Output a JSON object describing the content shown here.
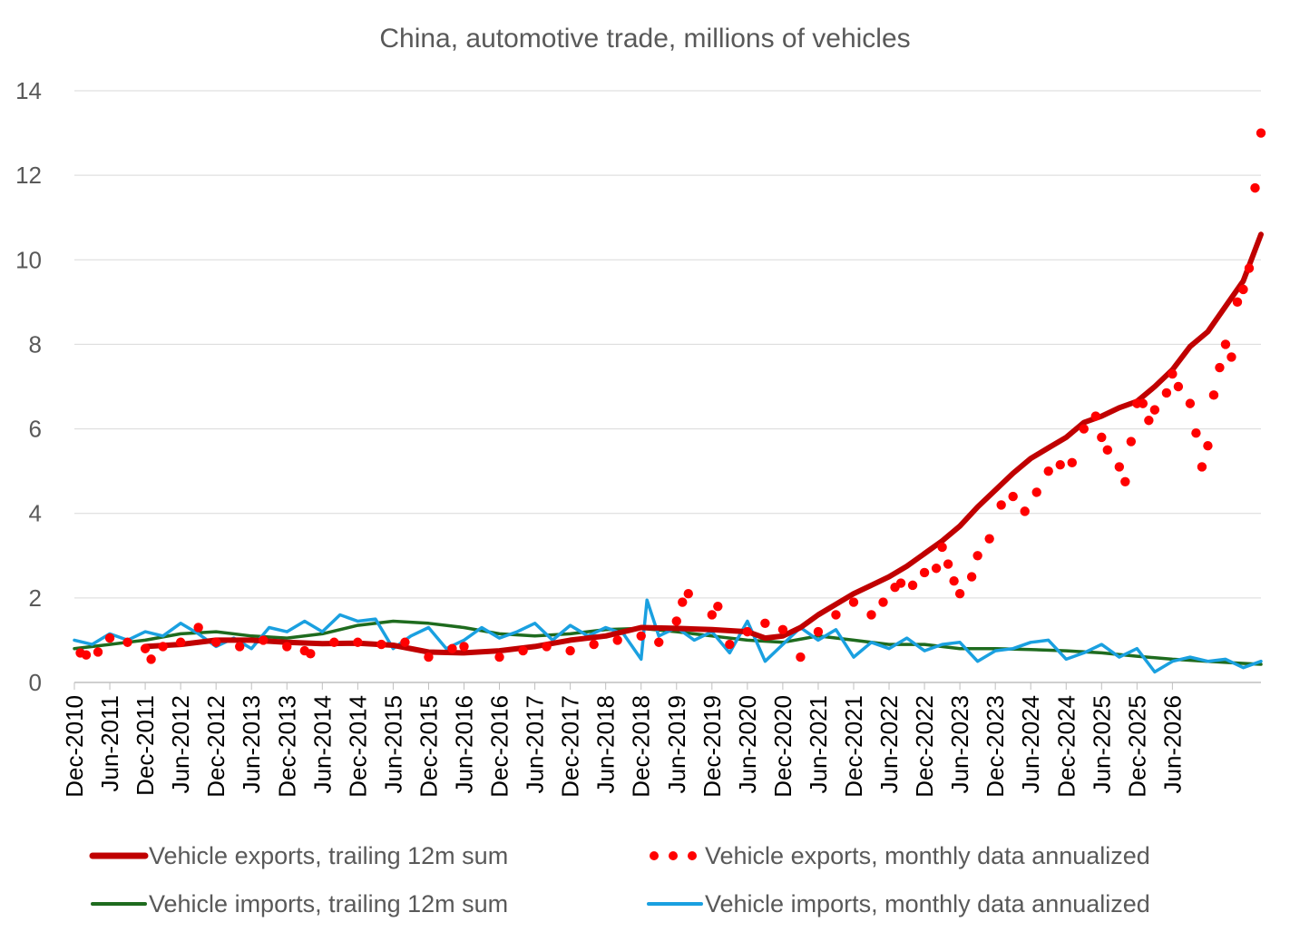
{
  "chart_data": {
    "type": "line",
    "title": "China, automotive trade, millions of vehicles",
    "xlabel": "",
    "ylabel": "",
    "ylim": [
      0,
      14
    ],
    "yticks": [
      "0",
      "2",
      "4",
      "6",
      "8",
      "10",
      "12",
      "14"
    ],
    "xticks": [
      "Dec-2010",
      "Jun-2011",
      "Dec-2011",
      "Jun-2012",
      "Dec-2012",
      "Jun-2013",
      "Dec-2013",
      "Jun-2014",
      "Dec-2014",
      "Jun-2015",
      "Dec-2015",
      "Jun-2016",
      "Dec-2016",
      "Jun-2017",
      "Dec-2017",
      "Jun-2018",
      "Dec-2018",
      "Jun-2019",
      "Dec-2019",
      "Jun-2020",
      "Dec-2020",
      "Jun-2021",
      "Dec-2021",
      "Jun-2022",
      "Dec-2022",
      "Jun-2023",
      "Dec-2023",
      "Jun-2024",
      "Dec-2024",
      "Jun-2025",
      "Dec-2025",
      "Jun-2026"
    ],
    "grid": true,
    "legend_position": "bottom",
    "x_anchor_points": [
      "2010-12",
      "2026-06"
    ],
    "series": [
      {
        "name": "Vehicle exports, trailing 12m sum",
        "style": "line-thick",
        "color": "#c00000",
        "points": [
          [
            "2011-12",
            0.85
          ],
          [
            "2012-06",
            0.9
          ],
          [
            "2012-12",
            1.0
          ],
          [
            "2013-06",
            1.0
          ],
          [
            "2013-12",
            0.95
          ],
          [
            "2014-06",
            0.92
          ],
          [
            "2014-12",
            0.93
          ],
          [
            "2015-06",
            0.88
          ],
          [
            "2015-12",
            0.72
          ],
          [
            "2016-06",
            0.7
          ],
          [
            "2016-12",
            0.75
          ],
          [
            "2017-06",
            0.85
          ],
          [
            "2017-12",
            1.0
          ],
          [
            "2018-06",
            1.1
          ],
          [
            "2018-12",
            1.3
          ],
          [
            "2019-06",
            1.28
          ],
          [
            "2019-12",
            1.25
          ],
          [
            "2020-06",
            1.2
          ],
          [
            "2020-09",
            1.05
          ],
          [
            "2020-12",
            1.1
          ],
          [
            "2021-03",
            1.3
          ],
          [
            "2021-06",
            1.6
          ],
          [
            "2021-09",
            1.85
          ],
          [
            "2021-12",
            2.1
          ],
          [
            "2022-03",
            2.3
          ],
          [
            "2022-06",
            2.5
          ],
          [
            "2022-09",
            2.75
          ],
          [
            "2022-12",
            3.05
          ],
          [
            "2023-03",
            3.35
          ],
          [
            "2023-06",
            3.7
          ],
          [
            "2023-09",
            4.15
          ],
          [
            "2023-12",
            4.55
          ],
          [
            "2024-03",
            4.95
          ],
          [
            "2024-06",
            5.3
          ],
          [
            "2024-09",
            5.55
          ],
          [
            "2024-12",
            5.8
          ],
          [
            "2025-03",
            6.15
          ],
          [
            "2025-06",
            6.3
          ],
          [
            "2025-09",
            6.5
          ],
          [
            "2025-12",
            6.65
          ],
          [
            "2026-03",
            7.0
          ],
          [
            "2026-06",
            7.4
          ],
          [
            "2026-09",
            7.95
          ],
          [
            "2026-12",
            8.3
          ],
          [
            "2027-03",
            8.9
          ],
          [
            "2027-06",
            9.5
          ],
          [
            "2027-09",
            10.6
          ]
        ]
      },
      {
        "name": "Vehicle exports, monthly data annualized",
        "style": "dots",
        "color": "#ff0000",
        "points": [
          [
            "2011-01",
            0.7
          ],
          [
            "2011-02",
            0.65
          ],
          [
            "2011-04",
            0.72
          ],
          [
            "2011-06",
            1.05
          ],
          [
            "2011-09",
            0.95
          ],
          [
            "2011-12",
            0.8
          ],
          [
            "2012-01",
            0.55
          ],
          [
            "2012-03",
            0.85
          ],
          [
            "2012-06",
            0.95
          ],
          [
            "2012-09",
            1.3
          ],
          [
            "2012-12",
            0.95
          ],
          [
            "2013-04",
            0.85
          ],
          [
            "2013-08",
            1.0
          ],
          [
            "2013-12",
            0.85
          ],
          [
            "2014-03",
            0.75
          ],
          [
            "2014-04",
            0.68
          ],
          [
            "2014-08",
            0.95
          ],
          [
            "2014-12",
            0.95
          ],
          [
            "2015-04",
            0.9
          ],
          [
            "2015-08",
            0.95
          ],
          [
            "2015-12",
            0.6
          ],
          [
            "2016-04",
            0.8
          ],
          [
            "2016-06",
            0.85
          ],
          [
            "2016-12",
            0.6
          ],
          [
            "2017-04",
            0.75
          ],
          [
            "2017-08",
            0.85
          ],
          [
            "2017-12",
            0.75
          ],
          [
            "2018-04",
            0.9
          ],
          [
            "2018-08",
            1.0
          ],
          [
            "2018-12",
            1.1
          ],
          [
            "2019-03",
            0.95
          ],
          [
            "2019-06",
            1.45
          ],
          [
            "2019-07",
            1.9
          ],
          [
            "2019-08",
            2.1
          ],
          [
            "2019-12",
            1.6
          ],
          [
            "2020-01",
            1.8
          ],
          [
            "2020-03",
            0.9
          ],
          [
            "2020-06",
            1.2
          ],
          [
            "2020-09",
            1.4
          ],
          [
            "2020-12",
            1.25
          ],
          [
            "2021-03",
            0.6
          ],
          [
            "2021-06",
            1.2
          ],
          [
            "2021-09",
            1.6
          ],
          [
            "2021-12",
            1.9
          ],
          [
            "2022-03",
            1.6
          ],
          [
            "2022-05",
            1.9
          ],
          [
            "2022-07",
            2.25
          ],
          [
            "2022-08",
            2.35
          ],
          [
            "2022-10",
            2.3
          ],
          [
            "2022-12",
            2.6
          ],
          [
            "2023-02",
            2.7
          ],
          [
            "2023-03",
            3.2
          ],
          [
            "2023-04",
            2.8
          ],
          [
            "2023-05",
            2.4
          ],
          [
            "2023-06",
            2.1
          ],
          [
            "2023-08",
            2.5
          ],
          [
            "2023-09",
            3.0
          ],
          [
            "2023-11",
            3.4
          ],
          [
            "2024-01",
            4.2
          ],
          [
            "2024-03",
            4.4
          ],
          [
            "2024-05",
            4.05
          ],
          [
            "2024-07",
            4.5
          ],
          [
            "2024-09",
            5.0
          ],
          [
            "2024-11",
            5.15
          ],
          [
            "2025-01",
            5.2
          ],
          [
            "2025-03",
            6.0
          ],
          [
            "2025-05",
            6.3
          ],
          [
            "2025-06",
            5.8
          ],
          [
            "2025-07",
            5.5
          ],
          [
            "2025-09",
            5.1
          ],
          [
            "2025-10",
            4.75
          ],
          [
            "2025-11",
            5.7
          ],
          [
            "2025-12",
            6.6
          ],
          [
            "2026-01",
            6.6
          ],
          [
            "2026-02",
            6.2
          ],
          [
            "2026-03",
            6.45
          ],
          [
            "2026-05",
            6.85
          ],
          [
            "2026-06",
            7.3
          ],
          [
            "2026-07",
            7.0
          ],
          [
            "2026-09",
            6.6
          ],
          [
            "2026-10",
            5.9
          ],
          [
            "2026-11",
            5.1
          ],
          [
            "2026-12",
            5.6
          ],
          [
            "2027-01",
            6.8
          ],
          [
            "2027-02",
            7.45
          ],
          [
            "2027-03",
            8.0
          ],
          [
            "2027-04",
            7.7
          ],
          [
            "2027-05",
            9.0
          ],
          [
            "2027-06",
            9.3
          ],
          [
            "2027-07",
            9.8
          ],
          [
            "2027-08",
            11.7
          ],
          [
            "2027-09",
            13.0
          ]
        ]
      },
      {
        "name": "Vehicle imports, trailing 12m sum",
        "style": "line",
        "color": "#1e6b1e",
        "points": [
          [
            "2010-12",
            0.8
          ],
          [
            "2011-06",
            0.9
          ],
          [
            "2011-12",
            1.0
          ],
          [
            "2012-06",
            1.15
          ],
          [
            "2012-12",
            1.2
          ],
          [
            "2013-06",
            1.1
          ],
          [
            "2013-12",
            1.05
          ],
          [
            "2014-06",
            1.15
          ],
          [
            "2014-12",
            1.35
          ],
          [
            "2015-06",
            1.45
          ],
          [
            "2015-12",
            1.4
          ],
          [
            "2016-06",
            1.3
          ],
          [
            "2016-12",
            1.15
          ],
          [
            "2017-06",
            1.1
          ],
          [
            "2017-12",
            1.15
          ],
          [
            "2018-06",
            1.25
          ],
          [
            "2018-12",
            1.28
          ],
          [
            "2019-06",
            1.2
          ],
          [
            "2019-12",
            1.1
          ],
          [
            "2020-06",
            1.0
          ],
          [
            "2020-12",
            0.95
          ],
          [
            "2021-06",
            1.1
          ],
          [
            "2021-12",
            1.0
          ],
          [
            "2022-06",
            0.9
          ],
          [
            "2022-12",
            0.9
          ],
          [
            "2023-06",
            0.8
          ],
          [
            "2023-12",
            0.8
          ],
          [
            "2024-06",
            0.78
          ],
          [
            "2024-12",
            0.75
          ],
          [
            "2025-06",
            0.7
          ],
          [
            "2025-12",
            0.62
          ],
          [
            "2026-06",
            0.55
          ],
          [
            "2026-12",
            0.5
          ],
          [
            "2027-06",
            0.45
          ],
          [
            "2027-09",
            0.43
          ]
        ]
      },
      {
        "name": "Vehicle imports, monthly data annualized",
        "style": "line",
        "color": "#1aa0e0",
        "points": [
          [
            "2010-12",
            1.0
          ],
          [
            "2011-03",
            0.9
          ],
          [
            "2011-06",
            1.15
          ],
          [
            "2011-09",
            1.0
          ],
          [
            "2011-12",
            1.2
          ],
          [
            "2012-03",
            1.1
          ],
          [
            "2012-06",
            1.4
          ],
          [
            "2012-09",
            1.15
          ],
          [
            "2012-12",
            0.85
          ],
          [
            "2013-03",
            1.05
          ],
          [
            "2013-06",
            0.8
          ],
          [
            "2013-09",
            1.3
          ],
          [
            "2013-12",
            1.2
          ],
          [
            "2014-03",
            1.45
          ],
          [
            "2014-06",
            1.2
          ],
          [
            "2014-09",
            1.6
          ],
          [
            "2014-12",
            1.45
          ],
          [
            "2015-03",
            1.5
          ],
          [
            "2015-06",
            0.8
          ],
          [
            "2015-09",
            1.1
          ],
          [
            "2015-12",
            1.3
          ],
          [
            "2016-03",
            0.8
          ],
          [
            "2016-06",
            1.0
          ],
          [
            "2016-09",
            1.3
          ],
          [
            "2016-12",
            1.05
          ],
          [
            "2017-03",
            1.2
          ],
          [
            "2017-06",
            1.4
          ],
          [
            "2017-09",
            1.0
          ],
          [
            "2017-12",
            1.35
          ],
          [
            "2018-03",
            1.1
          ],
          [
            "2018-06",
            1.3
          ],
          [
            "2018-09",
            1.15
          ],
          [
            "2018-12",
            0.55
          ],
          [
            "2019-01",
            1.95
          ],
          [
            "2019-03",
            1.1
          ],
          [
            "2019-06",
            1.3
          ],
          [
            "2019-09",
            1.0
          ],
          [
            "2019-12",
            1.2
          ],
          [
            "2020-03",
            0.7
          ],
          [
            "2020-06",
            1.45
          ],
          [
            "2020-09",
            0.5
          ],
          [
            "2020-12",
            0.9
          ],
          [
            "2021-03",
            1.3
          ],
          [
            "2021-06",
            1.0
          ],
          [
            "2021-09",
            1.25
          ],
          [
            "2021-12",
            0.6
          ],
          [
            "2022-03",
            0.95
          ],
          [
            "2022-06",
            0.8
          ],
          [
            "2022-09",
            1.05
          ],
          [
            "2022-12",
            0.75
          ],
          [
            "2023-03",
            0.9
          ],
          [
            "2023-06",
            0.95
          ],
          [
            "2023-09",
            0.5
          ],
          [
            "2023-12",
            0.75
          ],
          [
            "2024-03",
            0.8
          ],
          [
            "2024-06",
            0.95
          ],
          [
            "2024-09",
            1.0
          ],
          [
            "2024-12",
            0.55
          ],
          [
            "2025-03",
            0.7
          ],
          [
            "2025-06",
            0.9
          ],
          [
            "2025-09",
            0.6
          ],
          [
            "2025-12",
            0.8
          ],
          [
            "2026-03",
            0.25
          ],
          [
            "2026-06",
            0.5
          ],
          [
            "2026-09",
            0.6
          ],
          [
            "2026-12",
            0.5
          ],
          [
            "2027-03",
            0.55
          ],
          [
            "2027-06",
            0.35
          ],
          [
            "2027-09",
            0.5
          ]
        ]
      }
    ]
  }
}
